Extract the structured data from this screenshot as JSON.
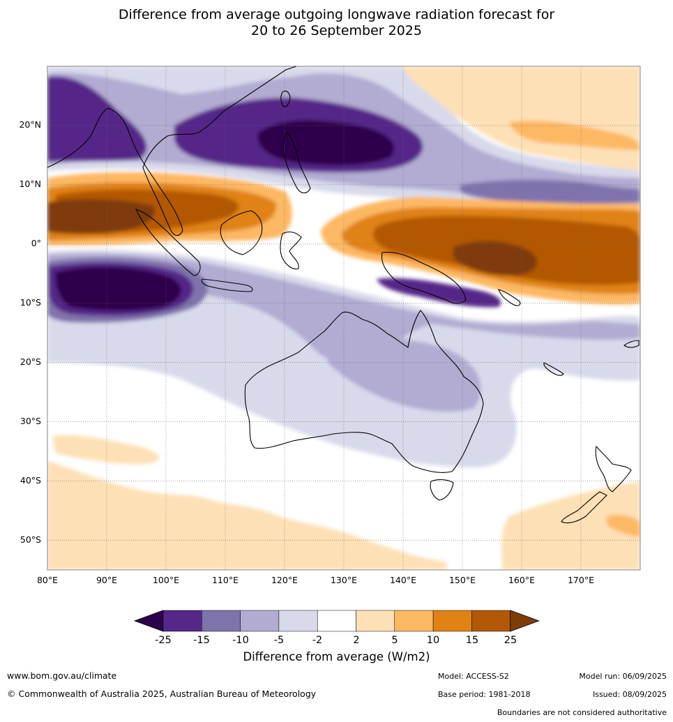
{
  "title": {
    "line1": "Difference from average outgoing longwave radiation forecast for",
    "line2": "20 to 26 September 2025"
  },
  "map": {
    "region": "Australia, Maritime Continent and Western Pacific",
    "lon_range": [
      80,
      180
    ],
    "lat_range": [
      -55,
      30
    ],
    "lon_tick_labels": [
      "80°E",
      "90°E",
      "100°E",
      "110°E",
      "120°E",
      "130°E",
      "140°E",
      "150°E",
      "160°E",
      "170°E"
    ],
    "lat_tick_labels": [
      "20°N",
      "10°N",
      "0°",
      "10°S",
      "20°S",
      "30°S",
      "40°S",
      "50°S"
    ],
    "features": [
      {
        "name": "equatorial-indian-ocean-high-anomaly",
        "category": "10 to 25"
      },
      {
        "name": "western-pacific-equatorial-high-anomaly",
        "category": "15 to 25"
      },
      {
        "name": "south-china-sea-philippines-low-anomaly",
        "category": "below -25"
      },
      {
        "name": "eastern-indian-ocean-low-anomaly",
        "category": "below -25"
      },
      {
        "name": "central-australia-low-anomaly",
        "category": "-10 to -5"
      },
      {
        "name": "southern-ocean-slight-high-anomaly",
        "category": "2 to 5"
      }
    ]
  },
  "colorbar": {
    "labels": [
      "-25",
      "-15",
      "-10",
      "-5",
      "-2",
      "2",
      "5",
      "10",
      "15",
      "25"
    ],
    "colors": [
      "#2d004b",
      "#542788",
      "#8073ac",
      "#b2abd2",
      "#d8daeb",
      "#ffffff",
      "#fee0b6",
      "#fdb863",
      "#e08214",
      "#b35806",
      "#7f3b08"
    ],
    "title": "Difference from average (W/m2)"
  },
  "footer": {
    "website": "www.bom.gov.au/climate",
    "copyright": "© Commonwealth of Australia 2025, Australian Bureau of Meteorology",
    "model": "Model: ACCESS-S2",
    "model_run": "Model run: 06/09/2025",
    "base_period": "Base period: 1981-2018",
    "issued": "Issued: 08/09/2025",
    "disclaimer": "Boundaries are not considered authoritative"
  }
}
